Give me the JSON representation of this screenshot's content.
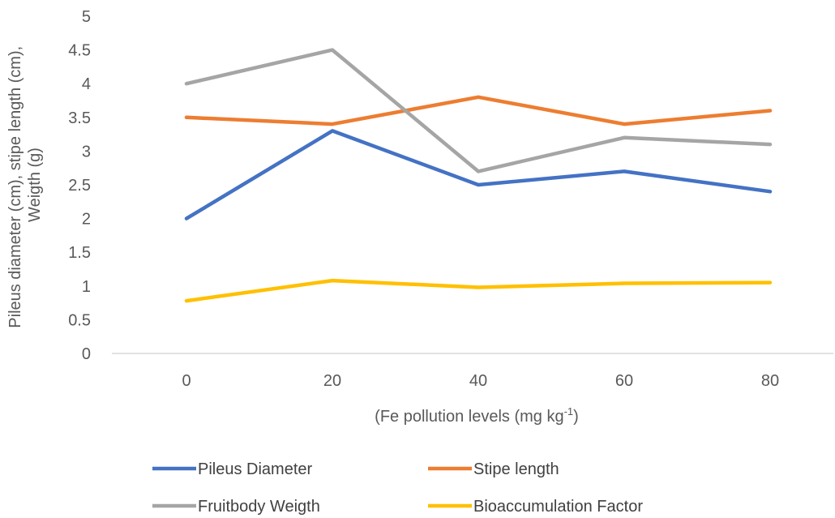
{
  "chart_data": {
    "type": "line",
    "title": "",
    "categories": [
      "0",
      "20",
      "40",
      "60",
      "80"
    ],
    "ylim": [
      0,
      5
    ],
    "yticks": [
      "0",
      "0.5",
      "1",
      "1.5",
      "2",
      "2.5",
      "3",
      "3.5",
      "4",
      "4.5",
      "5"
    ],
    "xlabel": "(Fe pollution levels (mg kg",
    "xlabel_sup": "-1",
    "xlabel_end": ")",
    "ylabel_line1": "Pileus diameter (cm), stipe length (cm),",
    "ylabel_line2": "Weigth (g)",
    "grid": false,
    "legend_position": "bottom",
    "series": [
      {
        "name": "Pileus Diameter",
        "color": "#4472C4",
        "values": [
          2.0,
          3.3,
          2.5,
          2.7,
          2.4
        ]
      },
      {
        "name": "Stipe length",
        "color": "#ED7D31",
        "values": [
          3.5,
          3.4,
          3.8,
          3.4,
          3.6
        ]
      },
      {
        "name": "Fruitbody Weigth",
        "color": "#A5A5A5",
        "values": [
          4.0,
          4.5,
          2.7,
          3.2,
          3.1
        ]
      },
      {
        "name": "Bioaccumulation Factor",
        "color": "#FFC000",
        "values": [
          0.78,
          1.08,
          0.98,
          1.04,
          1.05
        ]
      }
    ]
  }
}
